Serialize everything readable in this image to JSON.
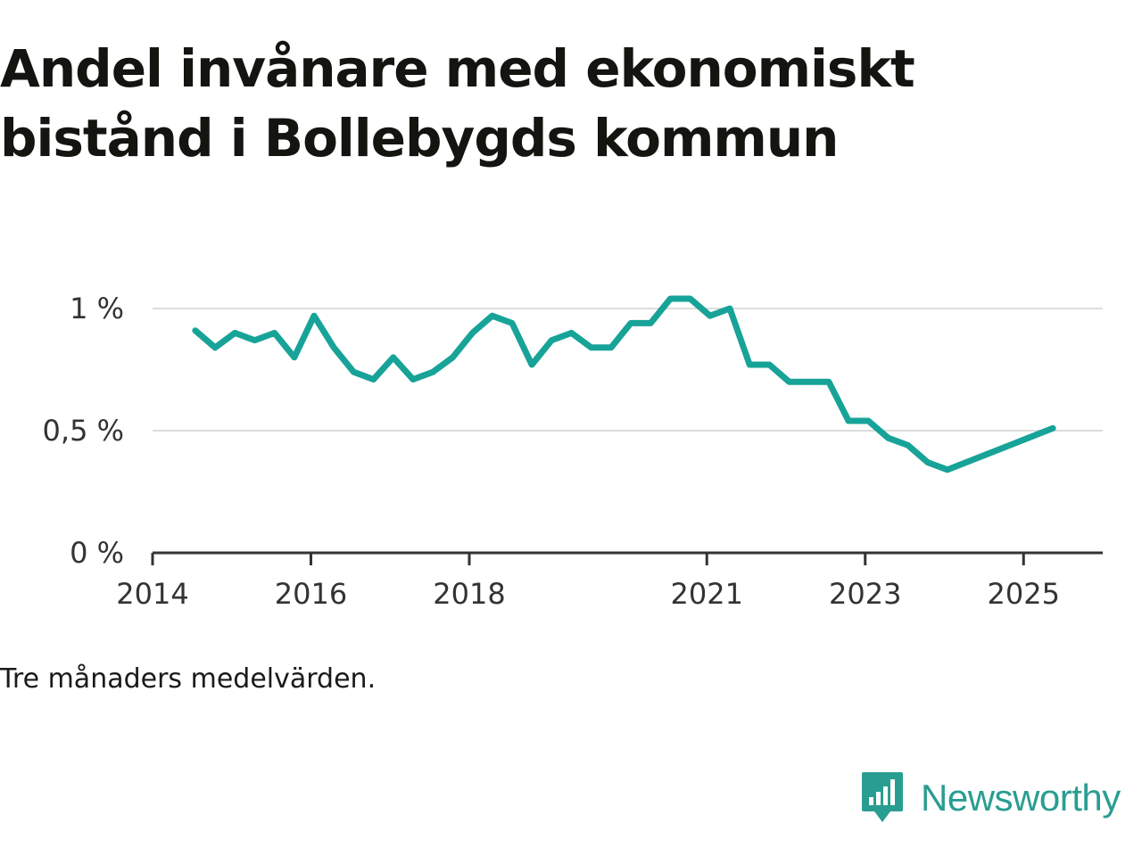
{
  "title": "Andel invånare med ekonomiskt bistånd i Bollebygds kommun",
  "note": "Tre månaders medelvärden.",
  "brand": {
    "name": "Newsworthy",
    "icon": "newsworthy-logo-icon",
    "color": "#2a9d91"
  },
  "chart_data": {
    "type": "line",
    "title": "Andel invånare med ekonomiskt bistånd i Bollebygds kommun",
    "xlabel": "",
    "ylabel": "",
    "grid": true,
    "line_color": "#17a398",
    "ylim": [
      0,
      1.1
    ],
    "xlim": [
      2014.0,
      2026.0
    ],
    "y_ticks": [
      {
        "value": 0,
        "label": "0 %"
      },
      {
        "value": 0.5,
        "label": "0,5 %"
      },
      {
        "value": 1,
        "label": "1 %"
      }
    ],
    "x_ticks": [
      {
        "value": 2014.0,
        "label": "2014"
      },
      {
        "value": 2016.0,
        "label": "2016"
      },
      {
        "value": 2018.0,
        "label": "2018"
      },
      {
        "value": 2021.0,
        "label": "2021"
      },
      {
        "value": 2023.0,
        "label": "2023"
      },
      {
        "value": 2025.0,
        "label": "2025"
      }
    ],
    "series": [
      {
        "x": [
          2014.54,
          2014.79,
          2015.04,
          2015.29,
          2015.54,
          2015.79,
          2016.04,
          2016.29,
          2016.54,
          2016.79,
          2017.04,
          2017.29,
          2017.54,
          2017.79,
          2018.04,
          2018.29,
          2018.54,
          2018.79,
          2019.04,
          2019.29,
          2019.54,
          2019.79,
          2020.04,
          2020.29,
          2020.54,
          2020.79,
          2021.04,
          2021.29,
          2021.54,
          2021.79,
          2022.04,
          2022.29,
          2022.54,
          2022.79,
          2023.04,
          2023.29,
          2023.54,
          2023.79,
          2024.04,
          2025.37
        ],
        "y": [
          0.91,
          0.84,
          0.9,
          0.87,
          0.9,
          0.8,
          0.97,
          0.84,
          0.74,
          0.71,
          0.8,
          0.71,
          0.74,
          0.8,
          0.9,
          0.97,
          0.94,
          0.77,
          0.87,
          0.9,
          0.84,
          0.84,
          0.94,
          0.94,
          1.04,
          1.04,
          0.97,
          1.0,
          0.77,
          0.77,
          0.7,
          0.7,
          0.7,
          0.54,
          0.54,
          0.47,
          0.44,
          0.37,
          0.34,
          0.51
        ]
      }
    ]
  }
}
